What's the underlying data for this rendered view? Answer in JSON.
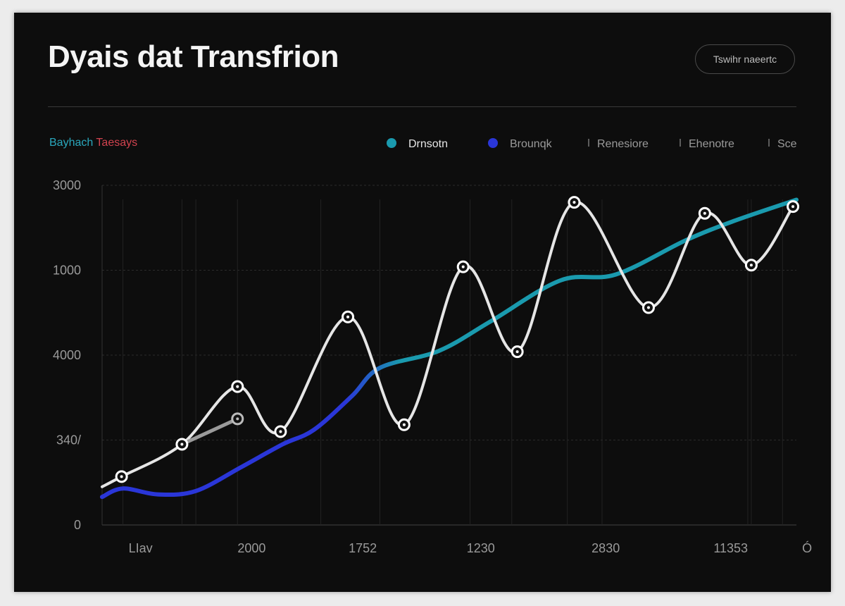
{
  "header": {
    "title": "Dyais dat Transfrion",
    "button_label": "Tswihr naeertc"
  },
  "subtitle": {
    "part_a": "Bayhach",
    "part_b": "Taesays"
  },
  "legend": [
    {
      "name": "Drnsotn",
      "marker": "dot",
      "color": "#1a9aae"
    },
    {
      "name": "Brounqk",
      "marker": "dot",
      "color": "#2a36d8"
    },
    {
      "name": "Renesiore",
      "marker": "tick",
      "color": "#777777"
    },
    {
      "name": "Ehenotre",
      "marker": "tick",
      "color": "#777777"
    },
    {
      "name": "Sce",
      "marker": "tick",
      "color": "#777777"
    }
  ],
  "chart_data": {
    "type": "line",
    "title": "Dyais dat Transfrion",
    "subtitle": "Bayhach Taesays",
    "xlabel": "",
    "ylabel": "",
    "ylim": [
      0,
      4
    ],
    "xlim": [
      0,
      100
    ],
    "y_ticks": [
      {
        "value": 0,
        "label": "0"
      },
      {
        "value": 1,
        "label": "340/"
      },
      {
        "value": 2,
        "label": "4000"
      },
      {
        "value": 3,
        "label": "1000"
      },
      {
        "value": 4,
        "label": "3000"
      }
    ],
    "x_ticks": [
      {
        "value": 3,
        "label": "LIav"
      },
      {
        "value": 19,
        "label": "2000"
      },
      {
        "value": 35,
        "label": "1752"
      },
      {
        "value": 52,
        "label": "1230"
      },
      {
        "value": 70,
        "label": "2830"
      },
      {
        "value": 88,
        "label": "11353"
      },
      {
        "value": 99,
        "label": "Ó"
      }
    ],
    "vertical_gridlines_at": [
      3,
      11.5,
      13.5,
      19.5,
      31.5,
      40,
      53,
      59,
      67,
      72,
      93,
      93.5,
      98
    ],
    "series": [
      {
        "name": "Drnsotn",
        "color": "#1a9aae",
        "style": "gradient-line",
        "gradient_from": "#2a36d8",
        "points": [
          [
            0,
            0.33
          ],
          [
            3,
            0.43
          ],
          [
            8,
            0.36
          ],
          [
            13.5,
            0.4
          ],
          [
            20,
            0.68
          ],
          [
            26,
            0.95
          ],
          [
            30.5,
            1.12
          ],
          [
            36,
            1.52
          ],
          [
            40,
            1.85
          ],
          [
            48.5,
            2.05
          ],
          [
            56,
            2.4
          ],
          [
            66,
            2.88
          ],
          [
            74,
            2.95
          ],
          [
            84,
            3.35
          ],
          [
            91,
            3.58
          ],
          [
            100,
            3.83
          ]
        ]
      },
      {
        "name": "Renesiore",
        "color": "#e6e6e6",
        "style": "wave",
        "points": [
          [
            0,
            0.45
          ],
          [
            2.8,
            0.57
          ],
          [
            11.5,
            0.95
          ],
          [
            19.5,
            1.63
          ],
          [
            25.7,
            1.1
          ],
          [
            35.4,
            2.45
          ],
          [
            43.5,
            1.18
          ],
          [
            52,
            3.04
          ],
          [
            59.8,
            2.04
          ],
          [
            68,
            3.8
          ],
          [
            78.7,
            2.56
          ],
          [
            86.8,
            3.67
          ],
          [
            93.5,
            3.06
          ],
          [
            99.5,
            3.75
          ]
        ],
        "markers": [
          [
            2.8,
            0.57
          ],
          [
            11.5,
            0.95
          ],
          [
            19.5,
            1.63
          ],
          [
            25.7,
            1.1
          ],
          [
            35.4,
            2.45
          ],
          [
            43.5,
            1.18
          ],
          [
            52,
            3.04
          ],
          [
            59.8,
            2.04
          ],
          [
            68,
            3.8
          ],
          [
            78.7,
            2.56
          ],
          [
            86.8,
            3.67
          ],
          [
            93.5,
            3.06
          ],
          [
            99.5,
            3.75
          ]
        ]
      },
      {
        "name": "Ehenotre",
        "color": "#9a9a9a",
        "style": "line",
        "points": [
          [
            11.5,
            0.95
          ],
          [
            19.5,
            1.25
          ]
        ],
        "markers": [
          [
            19.5,
            1.25
          ]
        ]
      }
    ]
  }
}
